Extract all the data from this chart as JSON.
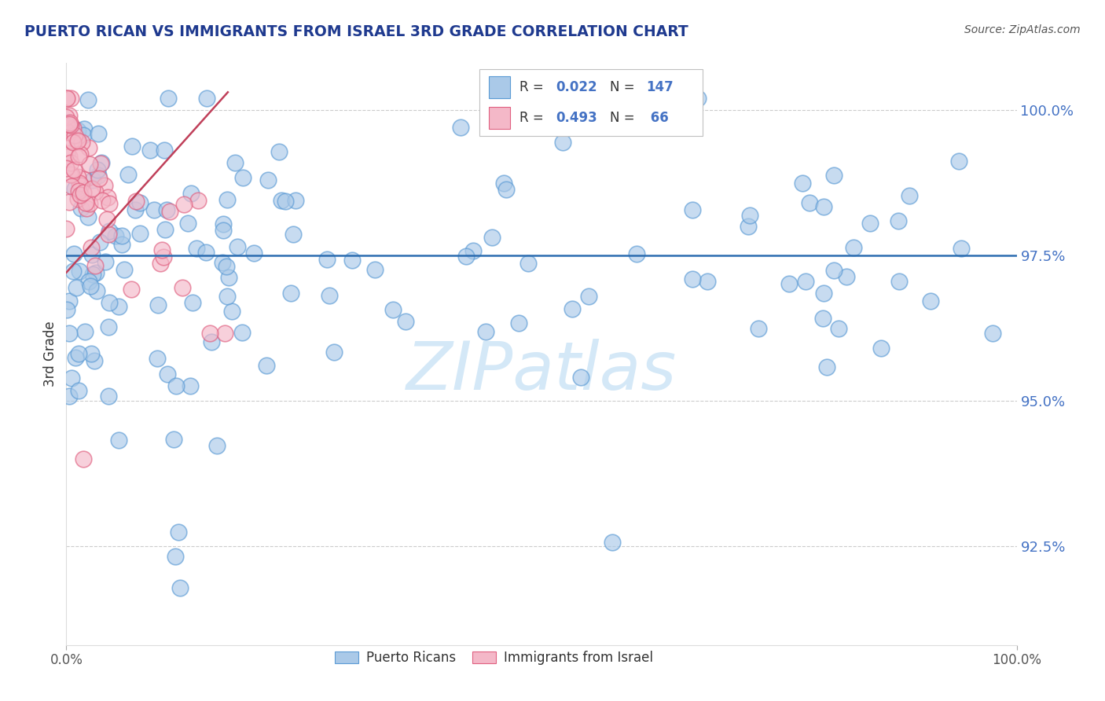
{
  "title": "PUERTO RICAN VS IMMIGRANTS FROM ISRAEL 3RD GRADE CORRELATION CHART",
  "source": "Source: ZipAtlas.com",
  "ylabel": "3rd Grade",
  "xlim": [
    0.0,
    1.0
  ],
  "ylim": [
    0.908,
    1.008
  ],
  "yticks": [
    0.925,
    0.95,
    0.975,
    1.0
  ],
  "ytick_labels": [
    "92.5%",
    "95.0%",
    "97.5%",
    "100.0%"
  ],
  "blue_r": "0.022",
  "blue_n": "147",
  "pink_r": "0.493",
  "pink_n": " 66",
  "bg_color": "#ffffff",
  "blue_fill": "#aac9e8",
  "blue_edge": "#5b9bd5",
  "pink_fill": "#f4b8c8",
  "pink_edge": "#e06080",
  "blue_line_color": "#2b6cb0",
  "pink_line_color": "#c0405a",
  "ytick_color": "#4472c4",
  "title_color": "#1f3a8f",
  "source_color": "#555555",
  "watermark": "ZIPatlas",
  "watermark_color": "#d4e8f7",
  "grid_color": "#cccccc",
  "legend_border_color": "#c0c0c0"
}
